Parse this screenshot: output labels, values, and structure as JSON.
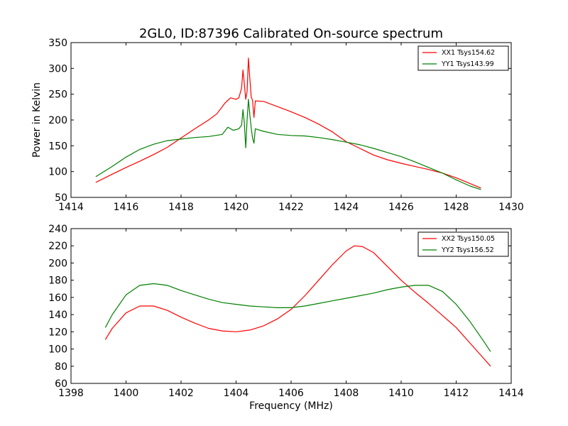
{
  "chart_data": [
    {
      "type": "line",
      "title": "2GL0, ID:87396 Calibrated On-source spectrum",
      "xlabel": "",
      "ylabel": "Power in Kelvin",
      "xlim": [
        1414,
        1430
      ],
      "ylim": [
        50,
        350
      ],
      "xticks": [
        1414,
        1416,
        1418,
        1420,
        1422,
        1424,
        1426,
        1428,
        1430
      ],
      "yticks": [
        50,
        100,
        150,
        200,
        250,
        300,
        350
      ],
      "grid": false,
      "legend_position": "top-right",
      "series": [
        {
          "name": "XX1 Tsys154.62",
          "color": "#ff0000",
          "points": [
            [
              1414.9,
              79
            ],
            [
              1415.5,
              95
            ],
            [
              1416.0,
              108
            ],
            [
              1416.5,
              120
            ],
            [
              1417.0,
              133
            ],
            [
              1417.5,
              147
            ],
            [
              1418.0,
              165
            ],
            [
              1418.5,
              183
            ],
            [
              1419.0,
              200
            ],
            [
              1419.3,
              212
            ],
            [
              1419.6,
              233
            ],
            [
              1419.8,
              243
            ],
            [
              1420.0,
              240
            ],
            [
              1420.1,
              243
            ],
            [
              1420.2,
              262
            ],
            [
              1420.25,
              297
            ],
            [
              1420.3,
              270
            ],
            [
              1420.35,
              240
            ],
            [
              1420.4,
              255
            ],
            [
              1420.45,
              320
            ],
            [
              1420.5,
              280
            ],
            [
              1420.55,
              245
            ],
            [
              1420.6,
              238
            ],
            [
              1420.65,
              205
            ],
            [
              1420.7,
              237
            ],
            [
              1421.0,
              236
            ],
            [
              1421.5,
              226
            ],
            [
              1422.0,
              216
            ],
            [
              1422.5,
              205
            ],
            [
              1423.0,
              192
            ],
            [
              1423.5,
              177
            ],
            [
              1424.0,
              158
            ],
            [
              1424.5,
              145
            ],
            [
              1425.0,
              132
            ],
            [
              1425.5,
              123
            ],
            [
              1426.0,
              116
            ],
            [
              1426.5,
              110
            ],
            [
              1427.0,
              104
            ],
            [
              1427.5,
              97
            ],
            [
              1428.0,
              88
            ],
            [
              1428.5,
              77
            ],
            [
              1428.9,
              68
            ]
          ]
        },
        {
          "name": "YY1 Tsys143.99",
          "color": "#008000",
          "points": [
            [
              1414.9,
              90
            ],
            [
              1415.5,
              110
            ],
            [
              1416.0,
              128
            ],
            [
              1416.5,
              143
            ],
            [
              1417.0,
              153
            ],
            [
              1417.5,
              160
            ],
            [
              1418.0,
              163
            ],
            [
              1418.5,
              166
            ],
            [
              1419.0,
              168
            ],
            [
              1419.5,
              172
            ],
            [
              1419.7,
              186
            ],
            [
              1419.9,
              180
            ],
            [
              1420.1,
              183
            ],
            [
              1420.2,
              190
            ],
            [
              1420.25,
              220
            ],
            [
              1420.3,
              195
            ],
            [
              1420.35,
              146
            ],
            [
              1420.4,
              200
            ],
            [
              1420.45,
              240
            ],
            [
              1420.5,
              210
            ],
            [
              1420.55,
              185
            ],
            [
              1420.6,
              165
            ],
            [
              1420.65,
              155
            ],
            [
              1420.7,
              183
            ],
            [
              1421.0,
              178
            ],
            [
              1421.5,
              172
            ],
            [
              1422.0,
              170
            ],
            [
              1422.5,
              169
            ],
            [
              1423.0,
              166
            ],
            [
              1423.5,
              162
            ],
            [
              1424.0,
              157
            ],
            [
              1424.5,
              152
            ],
            [
              1425.0,
              145
            ],
            [
              1425.5,
              137
            ],
            [
              1426.0,
              129
            ],
            [
              1426.5,
              119
            ],
            [
              1427.0,
              108
            ],
            [
              1427.5,
              97
            ],
            [
              1428.0,
              84
            ],
            [
              1428.5,
              72
            ],
            [
              1428.9,
              65
            ]
          ]
        }
      ]
    },
    {
      "type": "line",
      "title": "",
      "xlabel": "Frequency (MHz)",
      "ylabel": "",
      "xlim": [
        1398,
        1414
      ],
      "ylim": [
        60,
        240
      ],
      "xticks": [
        1398,
        1400,
        1402,
        1404,
        1406,
        1408,
        1410,
        1412,
        1414
      ],
      "yticks": [
        60,
        80,
        100,
        120,
        140,
        160,
        180,
        200,
        220,
        240
      ],
      "grid": false,
      "legend_position": "top-right",
      "series": [
        {
          "name": "XX2 Tsys150.05",
          "color": "#ff0000",
          "points": [
            [
              1399.25,
              111
            ],
            [
              1399.5,
              124
            ],
            [
              1400.0,
              142
            ],
            [
              1400.5,
              150
            ],
            [
              1401.0,
              150
            ],
            [
              1401.5,
              145
            ],
            [
              1402.0,
              137
            ],
            [
              1402.5,
              130
            ],
            [
              1403.0,
              124
            ],
            [
              1403.5,
              121
            ],
            [
              1404.0,
              120
            ],
            [
              1404.5,
              122
            ],
            [
              1405.0,
              127
            ],
            [
              1405.5,
              135
            ],
            [
              1406.0,
              146
            ],
            [
              1406.5,
              162
            ],
            [
              1407.0,
              180
            ],
            [
              1407.5,
              198
            ],
            [
              1408.0,
              214
            ],
            [
              1408.3,
              220
            ],
            [
              1408.6,
              219
            ],
            [
              1409.0,
              212
            ],
            [
              1409.5,
              196
            ],
            [
              1410.0,
              180
            ],
            [
              1410.5,
              166
            ],
            [
              1411.0,
              153
            ],
            [
              1411.5,
              139
            ],
            [
              1412.0,
              125
            ],
            [
              1412.5,
              107
            ],
            [
              1413.0,
              89
            ],
            [
              1413.25,
              80
            ]
          ]
        },
        {
          "name": "YY2 Tsys156.52",
          "color": "#008000",
          "points": [
            [
              1399.25,
              125
            ],
            [
              1399.5,
              140
            ],
            [
              1400.0,
              163
            ],
            [
              1400.5,
              174
            ],
            [
              1401.0,
              176
            ],
            [
              1401.5,
              174
            ],
            [
              1402.0,
              168
            ],
            [
              1402.5,
              163
            ],
            [
              1403.0,
              158
            ],
            [
              1403.5,
              154
            ],
            [
              1404.0,
              152
            ],
            [
              1404.5,
              150
            ],
            [
              1405.0,
              149
            ],
            [
              1405.5,
              148
            ],
            [
              1406.0,
              148
            ],
            [
              1406.5,
              150
            ],
            [
              1407.0,
              153
            ],
            [
              1407.5,
              156
            ],
            [
              1408.0,
              159
            ],
            [
              1408.5,
              162
            ],
            [
              1409.0,
              165
            ],
            [
              1409.5,
              169
            ],
            [
              1410.0,
              172
            ],
            [
              1410.5,
              174
            ],
            [
              1411.0,
              174
            ],
            [
              1411.5,
              167
            ],
            [
              1412.0,
              152
            ],
            [
              1412.5,
              132
            ],
            [
              1413.0,
              109
            ],
            [
              1413.25,
              97
            ]
          ]
        }
      ]
    }
  ]
}
